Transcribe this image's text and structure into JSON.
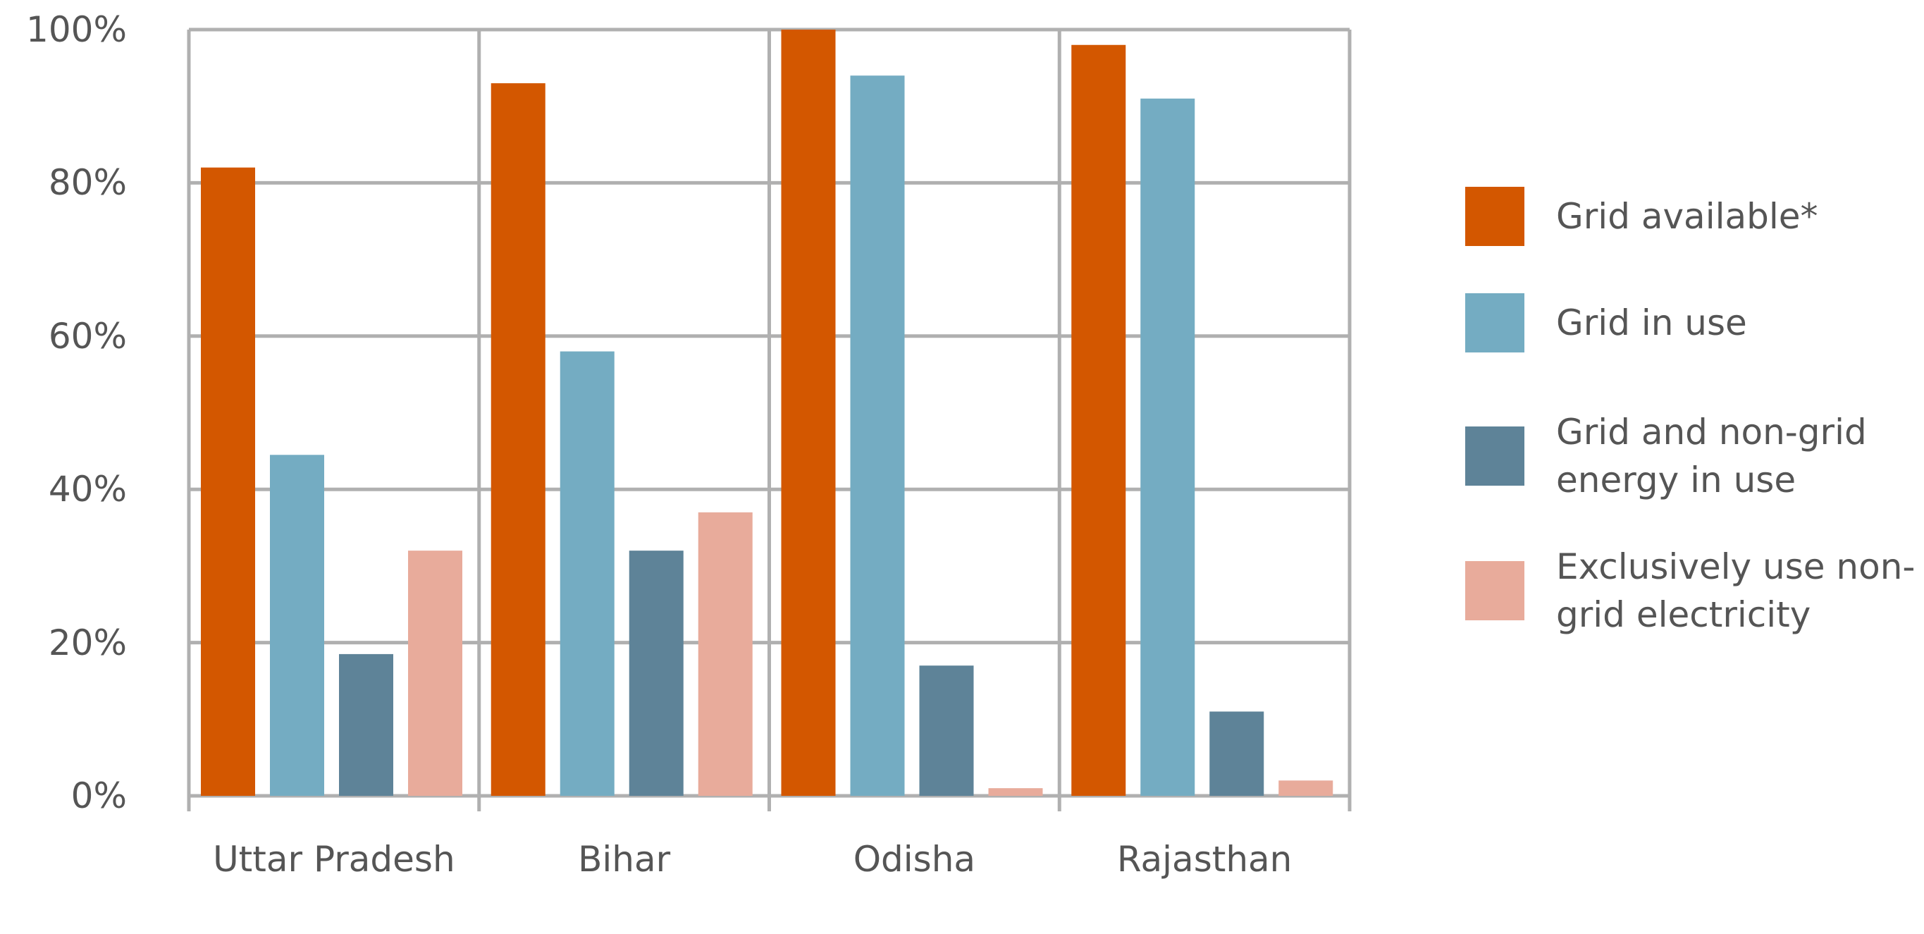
{
  "chart_data": {
    "type": "bar",
    "categories": [
      "Uttar Pradesh",
      "Bihar",
      "Odisha",
      "Rajasthan"
    ],
    "series": [
      {
        "name": "Grid available*",
        "color": "#d35700",
        "values": [
          82,
          93,
          100,
          98
        ]
      },
      {
        "name": "Grid in use",
        "color": "#74acc2",
        "values": [
          44.5,
          58,
          94,
          91
        ]
      },
      {
        "name": "Grid and non-grid energy in use",
        "color": "#5e8398",
        "values": [
          18.5,
          32,
          17,
          11
        ]
      },
      {
        "name": "Exclusively use non-grid electricity",
        "color": "#e8ab9b",
        "values": [
          32,
          37,
          1,
          2
        ]
      }
    ],
    "ylim": [
      0,
      100
    ],
    "yticks": [
      {
        "value": 0,
        "label": "0%"
      },
      {
        "value": 20,
        "label": "20%"
      },
      {
        "value": 40,
        "label": "40%"
      },
      {
        "value": 60,
        "label": "60%"
      },
      {
        "value": 80,
        "label": "80%"
      },
      {
        "value": 100,
        "label": "100%"
      }
    ],
    "grid": true,
    "legend": "right"
  }
}
